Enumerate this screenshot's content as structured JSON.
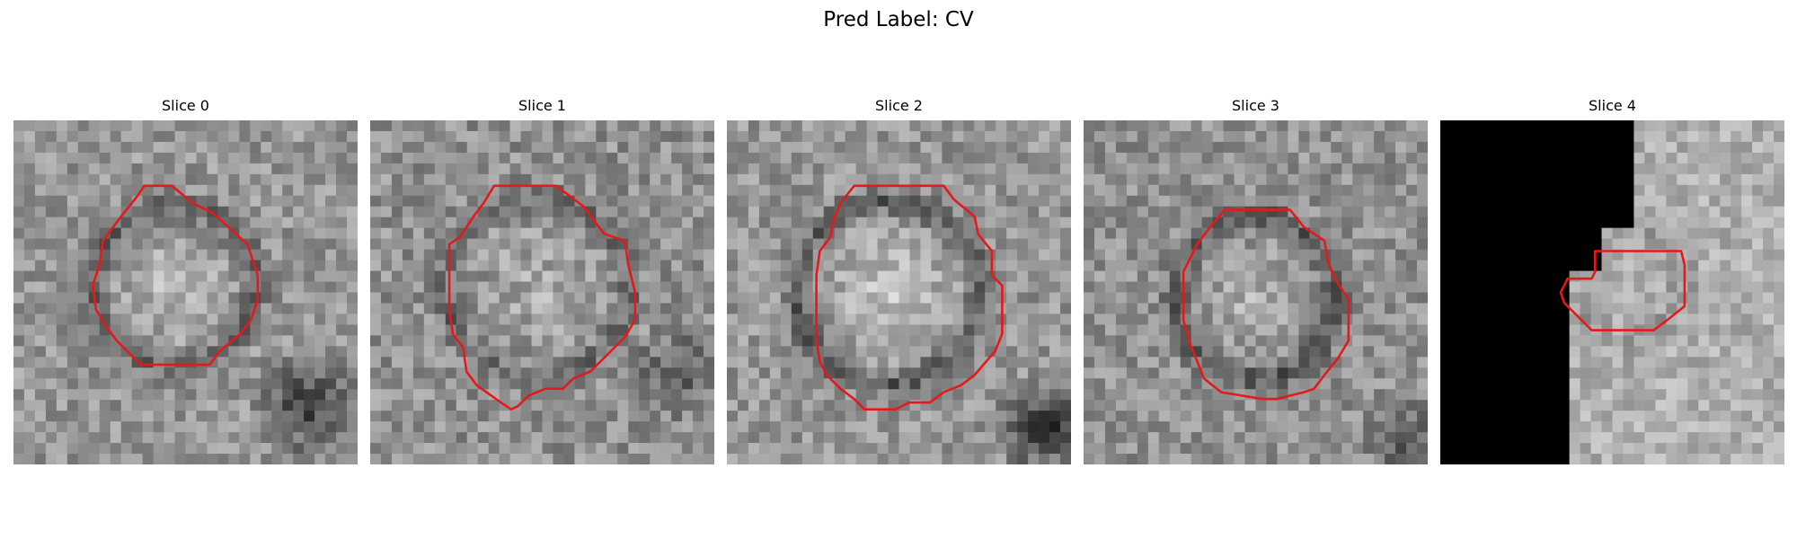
{
  "figure": {
    "title": "Pred Label: CV"
  },
  "panels": [
    {
      "title": "Slice 0",
      "contour_color": "#e31a1c"
    },
    {
      "title": "Slice 1",
      "contour_color": "#e31a1c"
    },
    {
      "title": "Slice 2",
      "contour_color": "#e31a1c"
    },
    {
      "title": "Slice 3",
      "contour_color": "#e31a1c"
    },
    {
      "title": "Slice 4",
      "contour_color": "#e31a1c"
    }
  ]
}
